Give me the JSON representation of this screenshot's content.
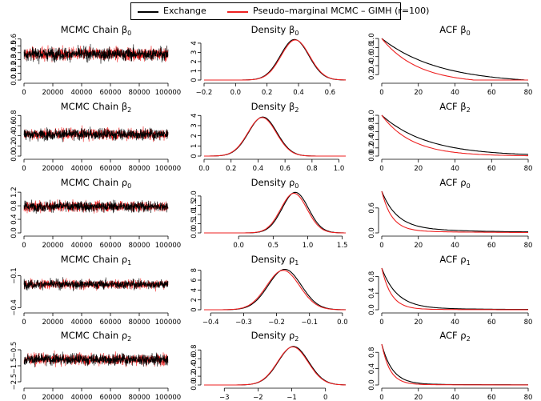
{
  "legend": {
    "entries": [
      {
        "label": "Exchange",
        "color": "#000000"
      },
      {
        "label": "Pseudo–marginal MCMC – GIMH (r=100)",
        "color": "#ee2222"
      }
    ]
  },
  "chart_data": [
    {
      "type": "line",
      "panel": "trace",
      "title": "MCMC Chain",
      "param_base": "β",
      "param_sub": "0",
      "x": [
        0,
        100000
      ],
      "xticks": [
        0,
        20000,
        40000,
        60000,
        80000,
        100000
      ],
      "xlim": [
        0,
        100000
      ],
      "yticks": [
        "0.0",
        "0.1",
        "0.2",
        "0.3",
        "0.4",
        "0.5",
        "0.6"
      ],
      "ylim": [
        0,
        0.62
      ],
      "series": [
        {
          "center": 0.38,
          "spread": 0.12
        },
        {
          "center": 0.38,
          "spread": 0.12
        }
      ]
    },
    {
      "type": "line",
      "panel": "density",
      "title": "Density",
      "param_base": "β",
      "param_sub": "0",
      "xticks": [
        "−0.2",
        "0.0",
        "0.2",
        "0.4",
        "0.6"
      ],
      "xtick_vals": [
        -0.2,
        0,
        0.2,
        0.4,
        0.6
      ],
      "xlim": [
        -0.2,
        0.7
      ],
      "yticks": [
        "0",
        "1",
        "2",
        "3",
        "4"
      ],
      "ytick_vals": [
        0,
        1,
        2,
        3,
        4
      ],
      "ylim": [
        0,
        4.6
      ],
      "series": [
        {
          "mean": 0.375,
          "sd": 0.09,
          "peak": 4.4
        },
        {
          "mean": 0.38,
          "sd": 0.09,
          "peak": 4.35
        }
      ]
    },
    {
      "type": "line",
      "panel": "acf",
      "title": "ACF",
      "param_base": "β",
      "param_sub": "0",
      "xticks": [
        0,
        20,
        40,
        60,
        80
      ],
      "xlim": [
        0,
        80
      ],
      "yticks": [
        "0.2",
        "0.4",
        "0.6",
        "0.8",
        "1.0"
      ],
      "ytick_vals": [
        0.2,
        0.4,
        0.6,
        0.8,
        1.0
      ],
      "ylim": [
        0.08,
        1.02
      ],
      "series": [
        {
          "decay": 0.032
        },
        {
          "decay": 0.05
        }
      ]
    },
    {
      "type": "line",
      "panel": "trace",
      "title": "MCMC Chain",
      "param_base": "β",
      "param_sub": "2",
      "xticks": [
        0,
        20000,
        40000,
        60000,
        80000,
        100000
      ],
      "xlim": [
        0,
        100000
      ],
      "yticks": [
        "0.0",
        "0.2",
        "0.4",
        "0.6",
        "0.8"
      ],
      "ylim": [
        0,
        0.82
      ],
      "series": [
        {
          "center": 0.43,
          "spread": 0.14
        },
        {
          "center": 0.43,
          "spread": 0.14
        }
      ]
    },
    {
      "type": "line",
      "panel": "density",
      "title": "Density",
      "param_base": "β",
      "param_sub": "2",
      "xticks": [
        "0.0",
        "0.2",
        "0.4",
        "0.6",
        "0.8",
        "1.0"
      ],
      "xtick_vals": [
        0,
        0.2,
        0.4,
        0.6,
        0.8,
        1.0
      ],
      "xlim": [
        0,
        1.05
      ],
      "yticks": [
        "0",
        "1",
        "2",
        "3",
        "4"
      ],
      "ytick_vals": [
        0,
        1,
        2,
        3,
        4
      ],
      "ylim": [
        0,
        4.1
      ],
      "series": [
        {
          "mean": 0.435,
          "sd": 0.105,
          "peak": 3.85
        },
        {
          "mean": 0.43,
          "sd": 0.105,
          "peak": 3.8
        }
      ]
    },
    {
      "type": "line",
      "panel": "acf",
      "title": "ACF",
      "param_base": "β",
      "param_sub": "2",
      "xticks": [
        0,
        20,
        40,
        60,
        80
      ],
      "xlim": [
        0,
        80
      ],
      "yticks": [
        "0.0",
        "0.2",
        "0.4",
        "0.6",
        "0.8",
        "1.0"
      ],
      "ytick_vals": [
        0,
        0.2,
        0.4,
        0.6,
        0.8,
        1.0
      ],
      "ylim": [
        0,
        1.02
      ],
      "series": [
        {
          "decay": 0.04
        },
        {
          "decay": 0.06
        }
      ]
    },
    {
      "type": "line",
      "panel": "trace",
      "title": "MCMC Chain",
      "param_base": "ρ",
      "param_sub": "0",
      "xticks": [
        0,
        20000,
        40000,
        60000,
        80000,
        100000
      ],
      "xlim": [
        0,
        100000
      ],
      "yticks": [
        "0.0",
        "0.4",
        "0.8",
        "1.2"
      ],
      "ylim": [
        0,
        1.25
      ],
      "series": [
        {
          "center": 0.78,
          "spread": 0.2
        },
        {
          "center": 0.78,
          "spread": 0.2
        }
      ]
    },
    {
      "type": "line",
      "panel": "density",
      "title": "Density",
      "param_base": "ρ",
      "param_sub": "0",
      "xticks": [
        "0.0",
        "0.5",
        "1.0",
        "1.5"
      ],
      "xtick_vals": [
        0,
        0.5,
        1.0,
        1.5
      ],
      "xlim": [
        -0.5,
        1.55
      ],
      "yticks": [
        "0.0",
        "0.5",
        "1.0",
        "1.5",
        "2.0"
      ],
      "ytick_vals": [
        0,
        0.5,
        1.0,
        1.5,
        2.0
      ],
      "ylim": [
        0,
        2.3
      ],
      "series": [
        {
          "mean": 0.82,
          "sd": 0.19,
          "peak": 2.2
        },
        {
          "mean": 0.8,
          "sd": 0.19,
          "peak": 2.15
        }
      ]
    },
    {
      "type": "line",
      "panel": "acf",
      "title": "ACF",
      "param_base": "ρ",
      "param_sub": "0",
      "xticks": [
        0,
        20,
        40,
        60,
        80
      ],
      "xlim": [
        0,
        80
      ],
      "yticks": [
        "0.0",
        "0.6"
      ],
      "ytick_vals": [
        0,
        0.6
      ],
      "ylim": [
        0,
        1.02
      ],
      "series": [
        {
          "decay": 0.12,
          "tail": 0.12
        },
        {
          "decay": 0.18,
          "tail": 0.05
        }
      ]
    },
    {
      "type": "line",
      "panel": "trace",
      "title": "MCMC Chain",
      "param_base": "ρ",
      "param_sub": "1",
      "xticks": [
        0,
        20000,
        40000,
        60000,
        80000,
        100000
      ],
      "xlim": [
        0,
        100000
      ],
      "yticks": [
        "−0.4",
        "−0.1"
      ],
      "ytick_vals": [
        -0.4,
        -0.1
      ],
      "ylim": [
        -0.42,
        -0.02
      ],
      "series": [
        {
          "center": -0.18,
          "spread": 0.055
        },
        {
          "center": -0.18,
          "spread": 0.055
        }
      ]
    },
    {
      "type": "line",
      "panel": "density",
      "title": "Density",
      "param_base": "ρ",
      "param_sub": "1",
      "xticks": [
        "−0.4",
        "−0.3",
        "−0.2",
        "−0.1",
        "0.0"
      ],
      "xtick_vals": [
        -0.4,
        -0.3,
        -0.2,
        -0.1,
        0
      ],
      "xlim": [
        -0.42,
        0.01
      ],
      "yticks": [
        "0",
        "2",
        "4",
        "6",
        "8"
      ],
      "ytick_vals": [
        0,
        2,
        4,
        6,
        8
      ],
      "ylim": [
        0,
        8.6
      ],
      "series": [
        {
          "mean": -0.175,
          "sd": 0.05,
          "peak": 8.2
        },
        {
          "mean": -0.18,
          "sd": 0.05,
          "peak": 8.0
        }
      ]
    },
    {
      "type": "line",
      "panel": "acf",
      "title": "ACF",
      "param_base": "ρ",
      "param_sub": "1",
      "xticks": [
        0,
        20,
        40,
        60,
        80
      ],
      "xlim": [
        0,
        80
      ],
      "yticks": [
        "0.0",
        "0.4",
        "0.8"
      ],
      "ytick_vals": [
        0,
        0.4,
        0.8
      ],
      "ylim": [
        0,
        1.02
      ],
      "series": [
        {
          "decay": 0.12,
          "tail": 0.04
        },
        {
          "decay": 0.19,
          "tail": 0.01
        }
      ]
    },
    {
      "type": "line",
      "panel": "trace",
      "title": "MCMC Chain",
      "param_base": "ρ",
      "param_sub": "2",
      "xticks": [
        0,
        20000,
        40000,
        60000,
        80000,
        100000
      ],
      "xlim": [
        0,
        100000
      ],
      "yticks": [
        "−2.5",
        "−1.5",
        "−0.5"
      ],
      "ytick_vals": [
        -2.5,
        -1.5,
        -0.5
      ],
      "ylim": [
        -2.7,
        -0.1
      ],
      "series": [
        {
          "center": -1.1,
          "spread": 0.45
        },
        {
          "center": -1.1,
          "spread": 0.45
        }
      ]
    },
    {
      "type": "line",
      "panel": "density",
      "title": "Density",
      "param_base": "ρ",
      "param_sub": "2",
      "xticks": [
        "−3",
        "−2",
        "−1",
        "0"
      ],
      "xtick_vals": [
        -3,
        -2,
        -1,
        0
      ],
      "xlim": [
        -3.6,
        0.6
      ],
      "yticks": [
        "0.0",
        "0.2",
        "0.4",
        "0.6",
        "0.8"
      ],
      "ytick_vals": [
        0,
        0.2,
        0.4,
        0.6,
        0.8
      ],
      "ylim": [
        0,
        0.95
      ],
      "series": [
        {
          "mean": -0.95,
          "sd": 0.45,
          "peak": 0.88
        },
        {
          "mean": -0.97,
          "sd": 0.45,
          "peak": 0.87
        }
      ]
    },
    {
      "type": "line",
      "panel": "acf",
      "title": "ACF",
      "param_base": "ρ",
      "param_sub": "2",
      "xticks": [
        0,
        20,
        40,
        60,
        80
      ],
      "xlim": [
        0,
        80
      ],
      "yticks": [
        "0.0",
        "0.4",
        "0.8"
      ],
      "ytick_vals": [
        0,
        0.4,
        0.8
      ],
      "ylim": [
        0,
        1.02
      ],
      "series": [
        {
          "decay": 0.17,
          "tail": 0.02
        },
        {
          "decay": 0.22,
          "tail": 0.01
        }
      ]
    }
  ]
}
